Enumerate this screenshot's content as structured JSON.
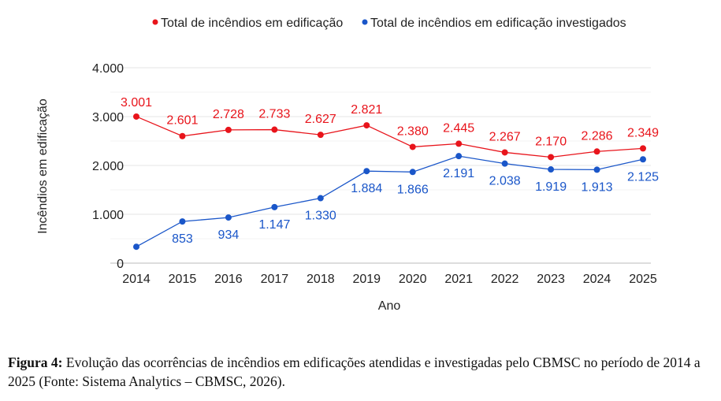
{
  "chart_data": {
    "type": "line",
    "title": "",
    "xlabel": "Ano",
    "ylabel": "Incêndios em edificação",
    "categories": [
      "2014",
      "2015",
      "2016",
      "2017",
      "2018",
      "2019",
      "2020",
      "2021",
      "2022",
      "2023",
      "2024",
      "2025"
    ],
    "ylim": [
      0,
      4000
    ],
    "yticks": [
      0,
      1000,
      2000,
      3000,
      4000
    ],
    "ytick_labels": [
      "0",
      "1.000",
      "2.000",
      "3.000",
      "4.000"
    ],
    "grid": true,
    "legend": "top",
    "series": [
      {
        "name": "Total de incêndios em edificação",
        "color": "#e8141b",
        "values": [
          3001,
          2601,
          2728,
          2733,
          2627,
          2821,
          2380,
          2445,
          2267,
          2170,
          2286,
          2349
        ],
        "labels": [
          "3.001",
          "2.601",
          "2.728",
          "2.733",
          "2.627",
          "2.821",
          "2.380",
          "2.445",
          "2.267",
          "2.170",
          "2.286",
          "2.349"
        ]
      },
      {
        "name": "Total de incêndios em edificação investigados",
        "color": "#1a56c9",
        "values": [
          335,
          853,
          934,
          1147,
          1330,
          1884,
          1866,
          2191,
          2038,
          1919,
          1913,
          2125
        ],
        "labels": [
          "",
          "853",
          "934",
          "1.147",
          "1.330",
          "1.884",
          "1.866",
          "2.191",
          "2.038",
          "1.919",
          "1.913",
          "2.125"
        ]
      }
    ]
  },
  "caption": {
    "label": "Figura 4:",
    "text": " Evolução das ocorrências de incêndios em edificações atendidas e investigadas pelo CBMSC no período de 2014 a 2025 (Fonte: Sistema Analytics – CBMSC, 2026)."
  }
}
